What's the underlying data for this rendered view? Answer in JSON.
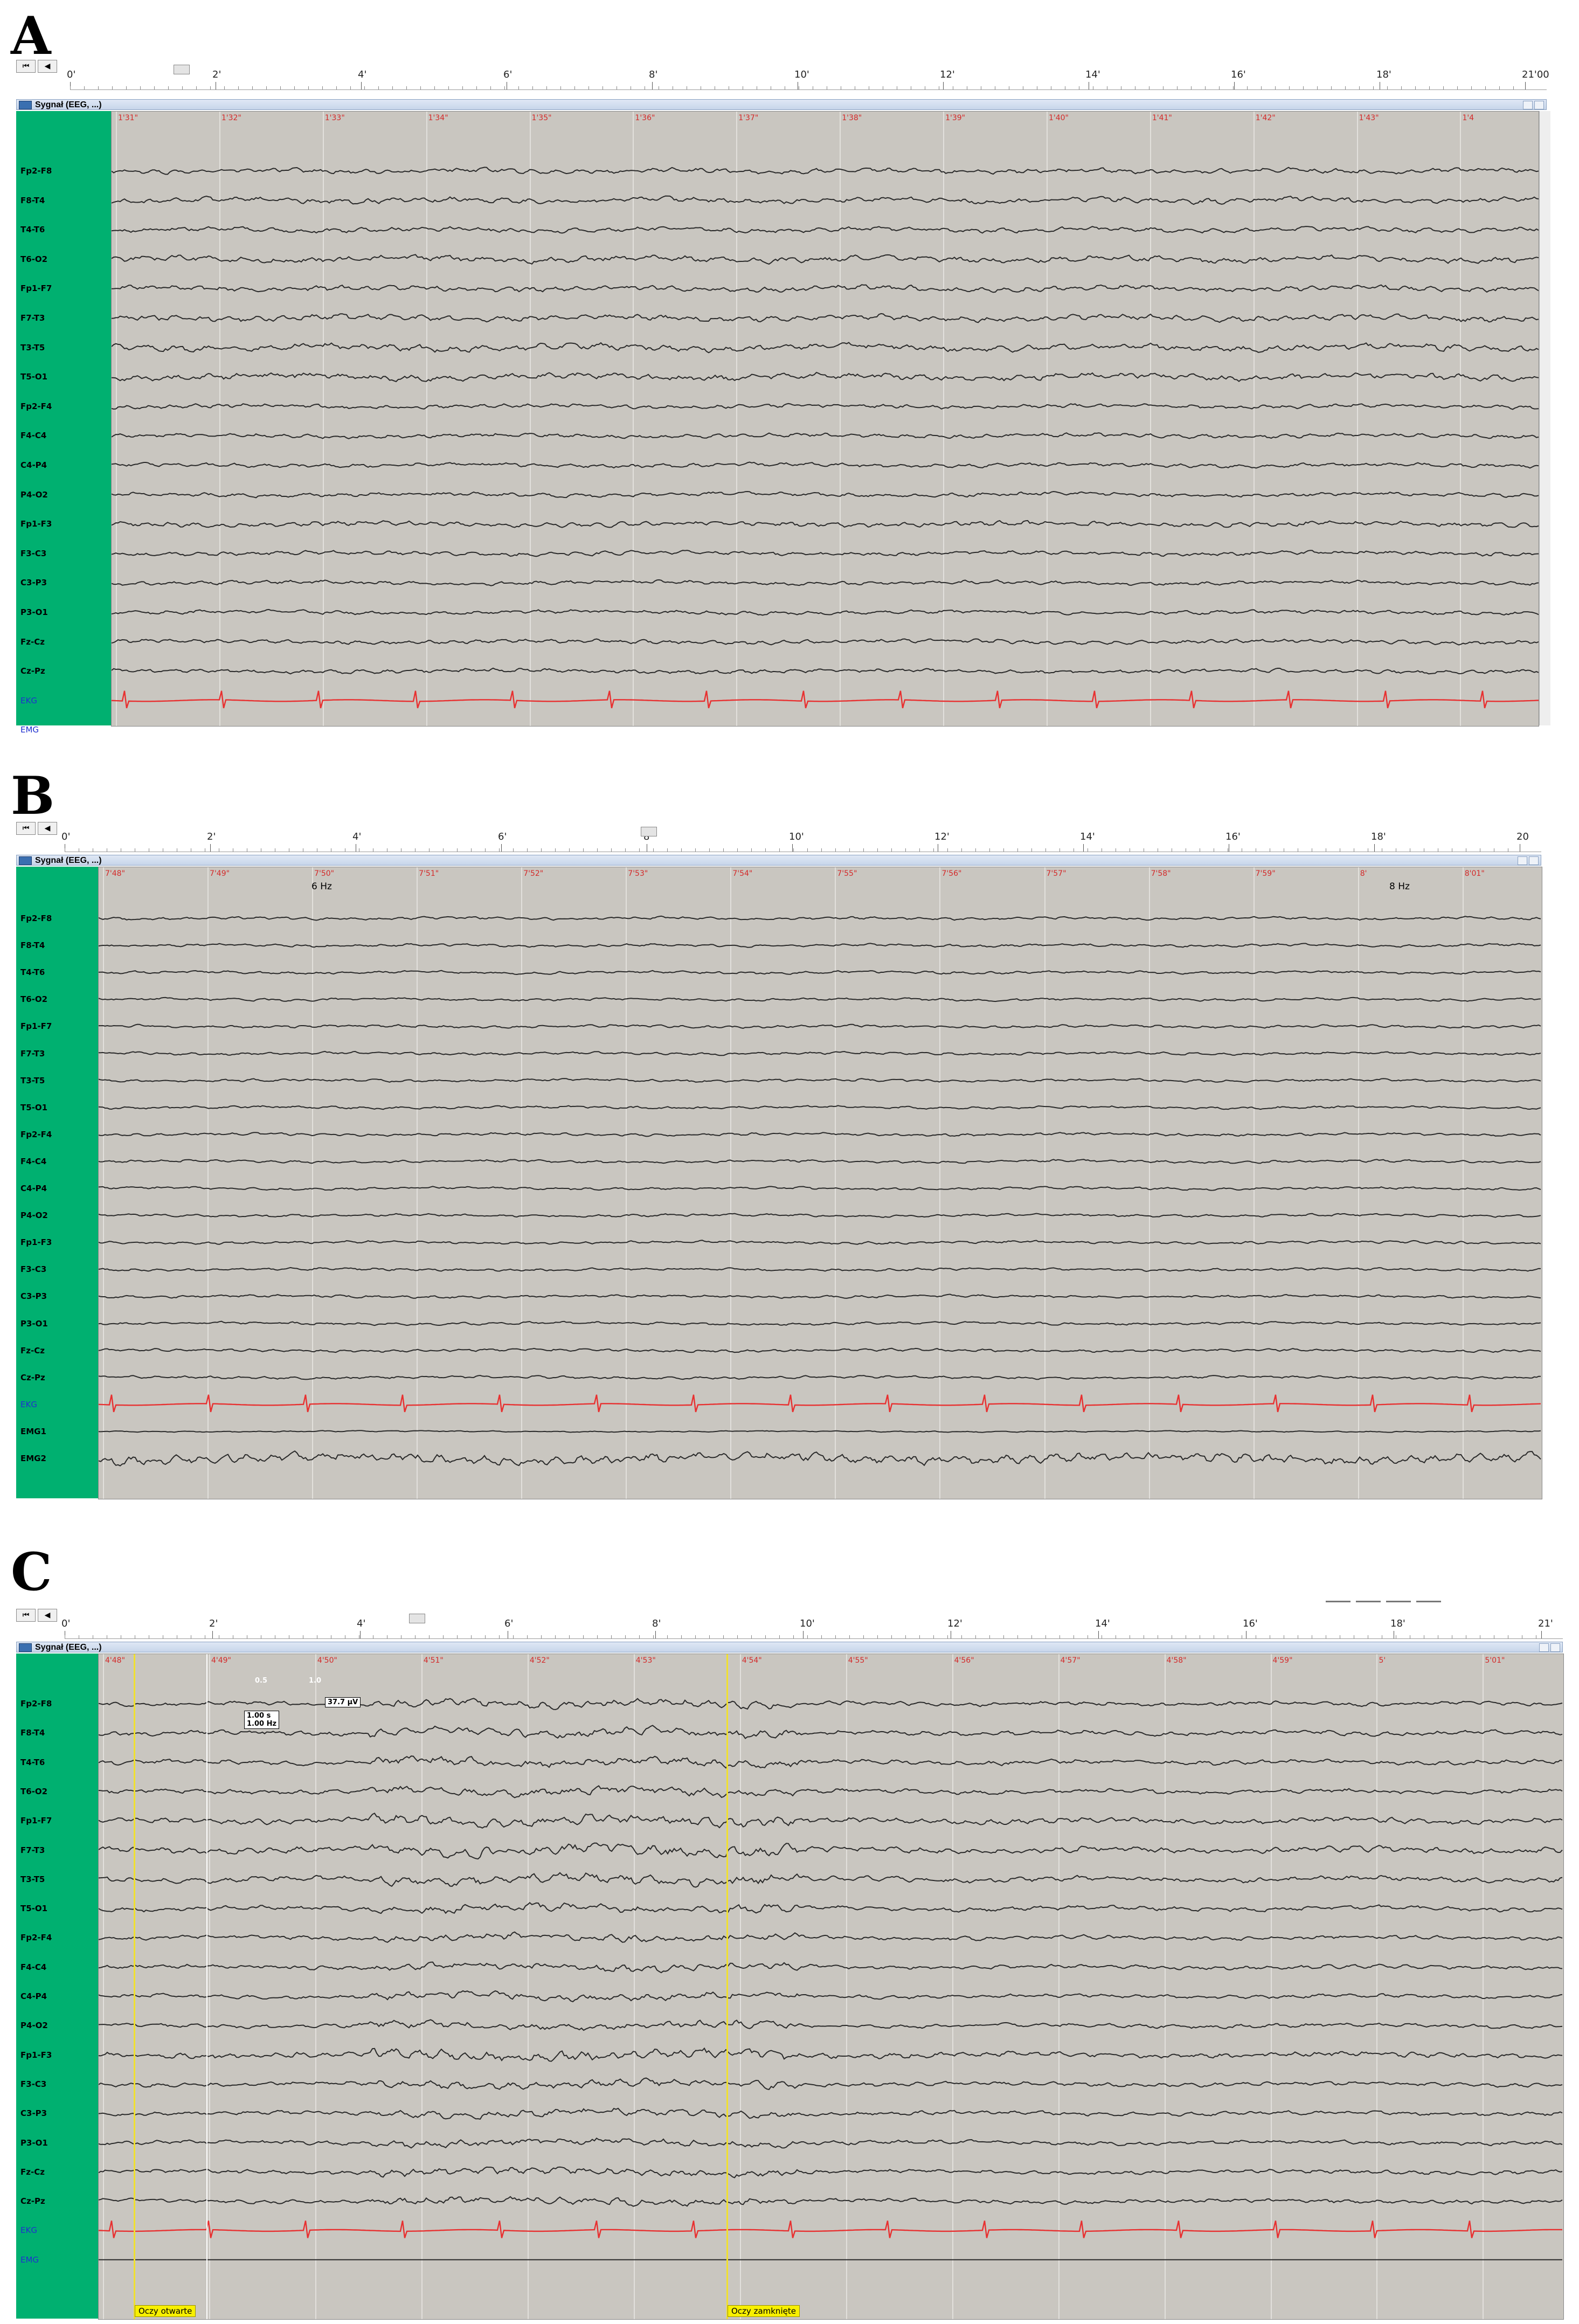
{
  "panels": [
    {
      "letter": "A",
      "window_title": "Sygnał (EEG, ...)",
      "ruler_labels": [
        "0'",
        "2'",
        "4'",
        "6'",
        "8'",
        "10'",
        "12'",
        "14'",
        "16'",
        "18'",
        "21'00"
      ],
      "time_labels": [
        "1'31\"",
        "1'32\"",
        "1'33\"",
        "1'34\"",
        "1'35\"",
        "1'36\"",
        "1'37\"",
        "1'38\"",
        "1'39\"",
        "1'40\"",
        "1'41\"",
        "1'42\"",
        "1'43\"",
        "1'4"
      ],
      "channels": [
        "Fp2-F8",
        "F8-T4",
        "T4-T6",
        "T6-O2",
        "Fp1-F7",
        "F7-T3",
        "T3-T5",
        "T5-O1",
        "Fp2-F4",
        "F4-C4",
        "C4-P4",
        "P4-O2",
        "Fp1-F3",
        "F3-C3",
        "C3-P3",
        "P3-O1",
        "Fz-Cz",
        "Cz-Pz",
        "EKG",
        "EMG"
      ]
    },
    {
      "letter": "B",
      "window_title": "Sygnał (EEG, ...)",
      "ruler_labels": [
        "0'",
        "2'",
        "4'",
        "6'",
        "8'",
        "10'",
        "12'",
        "14'",
        "16'",
        "18'",
        "20"
      ],
      "time_labels": [
        "7'48\"",
        "7'49\"",
        "7'50\"",
        "7'51\"",
        "7'52\"",
        "7'53\"",
        "7'54\"",
        "7'55\"",
        "7'56\"",
        "7'57\"",
        "7'58\"",
        "7'59\"",
        "8'",
        "8'01\""
      ],
      "freq_labels": [
        "6 Hz",
        "8 Hz"
      ],
      "channels": [
        "Fp2-F8",
        "F8-T4",
        "T4-T6",
        "T6-O2",
        "Fp1-F7",
        "F7-T3",
        "T3-T5",
        "T5-O1",
        "Fp2-F4",
        "F4-C4",
        "C4-P4",
        "P4-O2",
        "Fp1-F3",
        "F3-C3",
        "C3-P3",
        "P3-O1",
        "Fz-Cz",
        "Cz-Pz",
        "EKG",
        "EMG1",
        "EMG2"
      ]
    },
    {
      "letter": "C",
      "window_title": "Sygnał (EEG, ...)",
      "ruler_labels": [
        "0'",
        "2'",
        "4'",
        "6'",
        "8'",
        "10'",
        "12'",
        "14'",
        "16'",
        "18'",
        "21'"
      ],
      "time_labels": [
        "4'48\"",
        "4'49\"",
        "4'50\"",
        "4'51\"",
        "4'52\"",
        "4'53\"",
        "4'54\"",
        "4'55\"",
        "4'56\"",
        "4'57\"",
        "4'58\"",
        "4'59\"",
        "5'",
        "5'01\""
      ],
      "channels": [
        "Fp2-F8",
        "F8-T4",
        "T4-T6",
        "T6-O2",
        "Fp1-F7",
        "F7-T3",
        "T3-T5",
        "T5-O1",
        "Fp2-F4",
        "F4-C4",
        "C4-P4",
        "P4-O2",
        "Fp1-F3",
        "F3-C3",
        "C3-P3",
        "P3-O1",
        "Fz-Cz",
        "Cz-Pz",
        "EKG",
        "EMG"
      ],
      "measurement": {
        "scale_a": "0.5",
        "scale_b": "1.0",
        "amplitude": "37.7 µV",
        "duration": "1.00 s",
        "frequency": "1.00 Hz"
      },
      "markers": [
        "Oczy otwarte",
        "Oczy zamknięte"
      ]
    }
  ],
  "colors": {
    "sidebar": "#00b070",
    "trace": "#2a2a2a",
    "ekg_trace": "#e83030",
    "time_label": "#d42a2a",
    "background": "#c9c6c0"
  }
}
